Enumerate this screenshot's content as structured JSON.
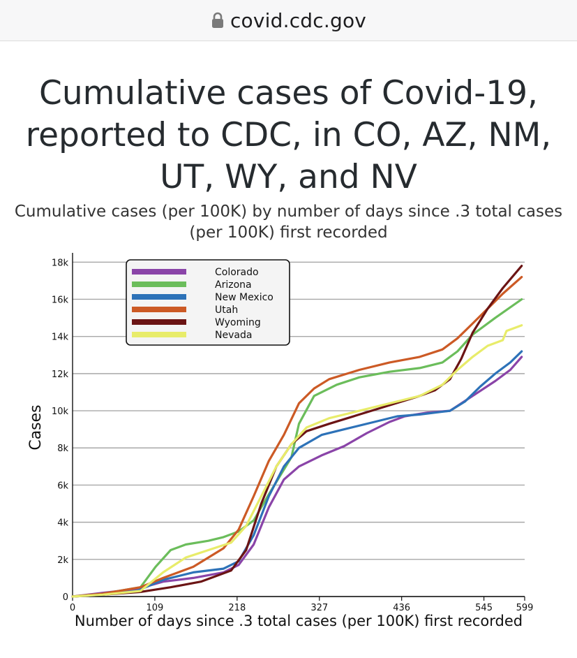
{
  "browser": {
    "url": "covid.cdc.gov",
    "icon": "lock-icon"
  },
  "chart_data": {
    "type": "line",
    "title": "Cumulative cases of Covid-19, reported to CDC, in CO, AZ, NM, UT, WY, and NV",
    "subtitle": "Cumulative cases (per 100K) by number of days since .3 total cases (per 100K) first recorded",
    "xlabel": "Number of days since .3 total cases (per 100K) first recorded",
    "ylabel": "Cases",
    "xlim": [
      0,
      599
    ],
    "ylim": [
      0,
      18500
    ],
    "xticks": [
      0,
      109,
      218,
      327,
      436,
      545,
      599
    ],
    "yticks": [
      0,
      2000,
      4000,
      6000,
      8000,
      10000,
      12000,
      14000,
      16000,
      18000
    ],
    "ytick_labels": [
      "0",
      "2k",
      "4k",
      "6k",
      "8k",
      "10k",
      "12k",
      "14k",
      "16k",
      "18k"
    ],
    "grid": "horizontal",
    "legend_position": "top-left",
    "series": [
      {
        "name": "Colorado",
        "color": "#8a44a8",
        "x": [
          0,
          40,
          85,
          120,
          160,
          200,
          220,
          240,
          260,
          280,
          300,
          330,
          360,
          390,
          420,
          440,
          470,
          500,
          530,
          560,
          580,
          595
        ],
        "y": [
          0,
          200,
          400,
          800,
          1000,
          1300,
          1700,
          2800,
          4800,
          6300,
          7000,
          7600,
          8100,
          8800,
          9400,
          9700,
          9900,
          10000,
          10800,
          11600,
          12200,
          12900
        ]
      },
      {
        "name": "Arizona",
        "color": "#6bbd5b",
        "x": [
          0,
          40,
          90,
          110,
          130,
          150,
          180,
          200,
          220,
          240,
          260,
          290,
          300,
          320,
          350,
          380,
          420,
          460,
          490,
          510,
          530,
          560,
          595
        ],
        "y": [
          0,
          150,
          500,
          1600,
          2500,
          2800,
          3000,
          3200,
          3500,
          4100,
          5500,
          7500,
          9300,
          10800,
          11400,
          11800,
          12100,
          12300,
          12600,
          13200,
          14100,
          15000,
          16000
        ]
      },
      {
        "name": "New Mexico",
        "color": "#2d72b8",
        "x": [
          0,
          40,
          85,
          120,
          160,
          200,
          220,
          240,
          260,
          280,
          300,
          330,
          360,
          400,
          430,
          460,
          500,
          520,
          540,
          560,
          580,
          595
        ],
        "y": [
          0,
          100,
          300,
          900,
          1300,
          1500,
          1900,
          3300,
          5400,
          7000,
          8000,
          8700,
          9000,
          9400,
          9700,
          9800,
          10000,
          10500,
          11300,
          12000,
          12600,
          13200
        ]
      },
      {
        "name": "Utah",
        "color": "#cc5a25",
        "x": [
          0,
          40,
          90,
          120,
          160,
          200,
          220,
          240,
          260,
          280,
          300,
          320,
          340,
          380,
          420,
          460,
          490,
          510,
          530,
          550,
          570,
          595
        ],
        "y": [
          0,
          150,
          500,
          1000,
          1600,
          2600,
          3600,
          5400,
          7300,
          8700,
          10400,
          11200,
          11700,
          12200,
          12600,
          12900,
          13300,
          13900,
          14700,
          15500,
          16300,
          17200
        ]
      },
      {
        "name": "Wyoming",
        "color": "#6b1414",
        "x": [
          0,
          40,
          90,
          130,
          170,
          210,
          230,
          250,
          270,
          290,
          310,
          340,
          380,
          420,
          460,
          480,
          500,
          515,
          530,
          550,
          570,
          595
        ],
        "y": [
          0,
          100,
          250,
          500,
          800,
          1400,
          2500,
          5000,
          7000,
          8200,
          8900,
          9300,
          9800,
          10300,
          10800,
          11100,
          11700,
          12800,
          14200,
          15500,
          16600,
          17800
        ]
      },
      {
        "name": "Nevada",
        "color": "#e8ec6a",
        "x": [
          0,
          40,
          90,
          120,
          150,
          180,
          210,
          230,
          250,
          270,
          290,
          310,
          340,
          380,
          420,
          460,
          490,
          510,
          530,
          550,
          570,
          575,
          595
        ],
        "y": [
          0,
          100,
          300,
          1300,
          2100,
          2500,
          2900,
          3800,
          5400,
          7000,
          8200,
          9100,
          9600,
          10000,
          10400,
          10800,
          11400,
          12200,
          12900,
          13500,
          13800,
          14300,
          14600
        ]
      }
    ]
  }
}
